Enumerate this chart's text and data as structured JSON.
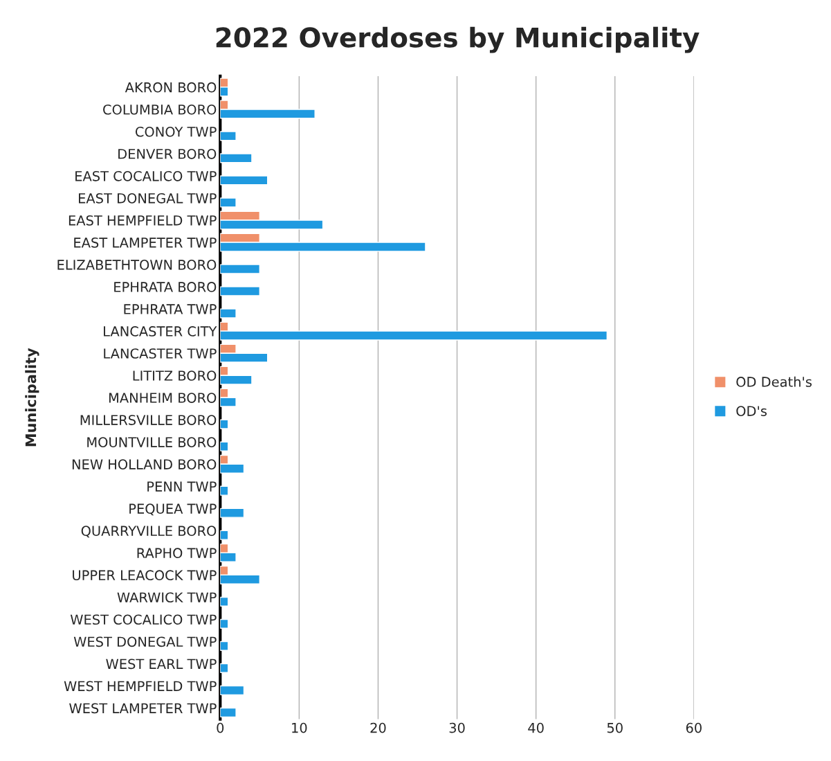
{
  "chart_data": {
    "type": "bar",
    "orientation": "horizontal",
    "title": "2022 Overdoses by Municipality",
    "ylabel": "Municipality",
    "categories": [
      "AKRON BORO",
      "COLUMBIA BORO",
      "CONOY TWP",
      "DENVER BORO",
      "EAST COCALICO TWP",
      "EAST DONEGAL TWP",
      "EAST HEMPFIELD TWP",
      "EAST LAMPETER TWP",
      "ELIZABETHTOWN BORO",
      "EPHRATA BORO",
      "EPHRATA TWP",
      "LANCASTER CITY",
      "LANCASTER TWP",
      "LITITZ BORO",
      "MANHEIM BORO",
      "MILLERSVILLE BORO",
      "MOUNTVILLE BORO",
      "NEW HOLLAND BORO",
      "PENN TWP",
      "PEQUEA TWP",
      "QUARRYVILLE BORO",
      "RAPHO TWP",
      "UPPER LEACOCK TWP",
      "WARWICK TWP",
      "WEST COCALICO TWP",
      "WEST DONEGAL TWP",
      "WEST EARL TWP",
      "WEST HEMPFIELD TWP",
      "WEST LAMPETER TWP"
    ],
    "series": [
      {
        "name": "OD Death's",
        "color": "#f0906a",
        "values": [
          1,
          1,
          null,
          null,
          null,
          null,
          5,
          5,
          null,
          null,
          null,
          1,
          2,
          1,
          1,
          null,
          null,
          1,
          null,
          null,
          null,
          1,
          1,
          null,
          null,
          null,
          null,
          null,
          null
        ]
      },
      {
        "name": "OD's",
        "color": "#1f9ae0",
        "values": [
          1,
          12,
          2,
          4,
          6,
          2,
          13,
          26,
          5,
          5,
          2,
          49,
          6,
          4,
          2,
          1,
          1,
          3,
          1,
          3,
          1,
          2,
          5,
          1,
          1,
          1,
          1,
          3,
          2
        ]
      }
    ],
    "xlim": [
      0,
      60
    ],
    "xticks": [
      0,
      10,
      20,
      30,
      40,
      50,
      60
    ],
    "grid": "x",
    "legend": "right"
  }
}
